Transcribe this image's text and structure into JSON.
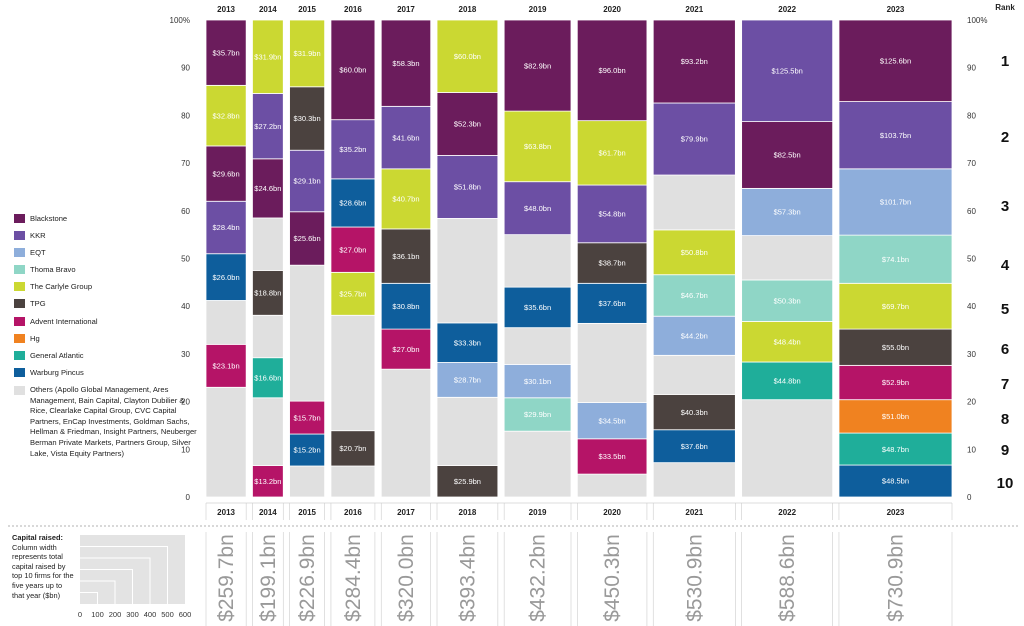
{
  "chart_data": {
    "type": "stacked-mekko",
    "rank_label": "Rank",
    "ranks": [
      "1",
      "2",
      "3",
      "4",
      "5",
      "6",
      "7",
      "8",
      "9",
      "10"
    ],
    "ylim": [
      0,
      100
    ],
    "yticks": [
      "0",
      "10",
      "20",
      "30",
      "40",
      "50",
      "60",
      "70",
      "80",
      "90",
      "100%"
    ],
    "colors": {
      "Blackstone": "#6b1c5c",
      "KKR": "#6c4fa4",
      "EQT": "#8eaedb",
      "Thoma Bravo": "#8fd6c6",
      "The Carlyle Group": "#cbd832",
      "TPG": "#4b423f",
      "Advent International": "#b51467",
      "Hg": "#f08220",
      "General Atlantic": "#1fae9a",
      "Warburg Pincus": "#0e5e9c",
      "Others": "#e0e0e0"
    },
    "legend": [
      {
        "name": "Blackstone",
        "label": "Blackstone"
      },
      {
        "name": "KKR",
        "label": "KKR"
      },
      {
        "name": "EQT",
        "label": "EQT"
      },
      {
        "name": "Thoma Bravo",
        "label": "Thoma Bravo"
      },
      {
        "name": "The Carlyle Group",
        "label": "The Carlyle Group"
      },
      {
        "name": "TPG",
        "label": "TPG"
      },
      {
        "name": "Advent International",
        "label": "Advent International"
      },
      {
        "name": "Hg",
        "label": "Hg"
      },
      {
        "name": "General Atlantic",
        "label": "General Atlantic"
      },
      {
        "name": "Warburg Pincus",
        "label": "Warburg Pincus"
      }
    ],
    "others_label": "Others (Apollo Global Management, Ares Management, Bain Capital, Clayton Dubilier & Rice, Clearlake Capital Group, CVC Capital Partners, EnCap Investments, Goldman Sachs, Hellman & Friedman, Insight Partners, Neuberger Berman Private Markets, Partners Group, Silver Lake, Vista Equity Partners)",
    "caption_title": "Capital raised:",
    "caption_text": "Column width represents total capital raised by top 10 firms for the five years up to that year ($bn)",
    "scale_ticks": [
      "0",
      "100",
      "200",
      "300",
      "400",
      "500",
      "600"
    ],
    "years": [
      {
        "year": "2013",
        "total": "$259.7bn",
        "total_bn": 259.7,
        "segments": [
          {
            "firm": "Others",
            "from": 0,
            "to": 23,
            "label": ""
          },
          {
            "firm": "Advent International",
            "from": 23,
            "to": 32,
            "label": "$23.1bn"
          },
          {
            "firm": "Others",
            "from": 32,
            "to": 41.2,
            "label": ""
          },
          {
            "firm": "Warburg Pincus",
            "from": 41.2,
            "to": 51,
            "label": "$26.0bn"
          },
          {
            "firm": "KKR",
            "from": 51,
            "to": 62,
            "label": "$28.4bn"
          },
          {
            "firm": "Blackstone",
            "from": 62,
            "to": 73.6,
            "label": "$29.6bn"
          },
          {
            "firm": "The Carlyle Group",
            "from": 73.6,
            "to": 86.3,
            "label": "$32.8bn"
          },
          {
            "firm": "Blackstone",
            "from": 86.3,
            "to": 100,
            "label": "$35.7bn"
          }
        ]
      },
      {
        "year": "2014",
        "total": "$199.1bn",
        "total_bn": 199.1,
        "segments": [
          {
            "firm": "Advent International",
            "from": 0,
            "to": 6.6,
            "label": "$13.2bn"
          },
          {
            "firm": "Others",
            "from": 6.6,
            "to": 20.8,
            "label": ""
          },
          {
            "firm": "General Atlantic",
            "from": 20.8,
            "to": 29.2,
            "label": "$16.6bn"
          },
          {
            "firm": "Others",
            "from": 29.2,
            "to": 38.1,
            "label": ""
          },
          {
            "firm": "TPG",
            "from": 38.1,
            "to": 47.5,
            "label": "$18.8bn"
          },
          {
            "firm": "Others",
            "from": 47.5,
            "to": 58.5,
            "label": ""
          },
          {
            "firm": "Blackstone",
            "from": 58.5,
            "to": 70.9,
            "label": "$24.6bn"
          },
          {
            "firm": "KKR",
            "from": 70.9,
            "to": 84.6,
            "label": "$27.2bn"
          },
          {
            "firm": "The Carlyle Group",
            "from": 84.6,
            "to": 100,
            "label": "$31.9bn"
          }
        ]
      },
      {
        "year": "2015",
        "total": "$226.9bn",
        "total_bn": 226.9,
        "segments": [
          {
            "firm": "Others",
            "from": 0,
            "to": 6.5,
            "label": ""
          },
          {
            "firm": "Warburg Pincus",
            "from": 6.5,
            "to": 13.2,
            "label": "$15.2bn"
          },
          {
            "firm": "Advent International",
            "from": 13.2,
            "to": 20.1,
            "label": "$15.7bn"
          },
          {
            "firm": "Others",
            "from": 20.1,
            "to": 48.6,
            "label": ""
          },
          {
            "firm": "Blackstone",
            "from": 48.6,
            "to": 59.8,
            "label": "$25.6bn"
          },
          {
            "firm": "KKR",
            "from": 59.8,
            "to": 72.7,
            "label": "$29.1bn"
          },
          {
            "firm": "TPG",
            "from": 72.7,
            "to": 86,
            "label": "$30.3bn"
          },
          {
            "firm": "The Carlyle Group",
            "from": 86,
            "to": 100,
            "label": "$31.9bn"
          }
        ]
      },
      {
        "year": "2016",
        "total": "$284.4bn",
        "total_bn": 284.4,
        "segments": [
          {
            "firm": "Others",
            "from": 0,
            "to": 6.5,
            "label": ""
          },
          {
            "firm": "TPG",
            "from": 6.5,
            "to": 13.9,
            "label": "$20.7bn"
          },
          {
            "firm": "Others",
            "from": 13.9,
            "to": 38.1,
            "label": ""
          },
          {
            "firm": "The Carlyle Group",
            "from": 38.1,
            "to": 47.1,
            "label": "$25.7bn"
          },
          {
            "firm": "Advent International",
            "from": 47.1,
            "to": 56.6,
            "label": "$27.0bn"
          },
          {
            "firm": "Warburg Pincus",
            "from": 56.6,
            "to": 66.7,
            "label": "$28.6bn"
          },
          {
            "firm": "KKR",
            "from": 66.7,
            "to": 79.1,
            "label": "$35.2bn"
          },
          {
            "firm": "Blackstone",
            "from": 79.1,
            "to": 100,
            "label": "$60.0bn"
          }
        ]
      },
      {
        "year": "2017",
        "total": "$320.0bn",
        "total_bn": 320.0,
        "segments": [
          {
            "firm": "Others",
            "from": 0,
            "to": 26.8,
            "label": ""
          },
          {
            "firm": "Advent International",
            "from": 26.8,
            "to": 35.2,
            "label": "$27.0bn"
          },
          {
            "firm": "Warburg Pincus",
            "from": 35.2,
            "to": 44.8,
            "label": "$30.8bn"
          },
          {
            "firm": "TPG",
            "from": 44.8,
            "to": 56.2,
            "label": "$36.1bn"
          },
          {
            "firm": "The Carlyle Group",
            "from": 56.2,
            "to": 68.8,
            "label": "$40.7bn"
          },
          {
            "firm": "KKR",
            "from": 68.8,
            "to": 81.9,
            "label": "$41.6bn"
          },
          {
            "firm": "Blackstone",
            "from": 81.9,
            "to": 100,
            "label": "$58.3bn"
          }
        ]
      },
      {
        "year": "2018",
        "total": "$393.4bn",
        "total_bn": 393.4,
        "segments": [
          {
            "firm": "TPG",
            "from": 0,
            "to": 6.6,
            "label": "$25.9bn"
          },
          {
            "firm": "Others",
            "from": 6.6,
            "to": 20.9,
            "label": ""
          },
          {
            "firm": "EQT",
            "from": 20.9,
            "to": 28.2,
            "label": "$28.7bn"
          },
          {
            "firm": "Warburg Pincus",
            "from": 28.2,
            "to": 36.5,
            "label": "$33.3bn"
          },
          {
            "firm": "Others",
            "from": 36.5,
            "to": 58.4,
            "label": ""
          },
          {
            "firm": "KKR",
            "from": 58.4,
            "to": 71.6,
            "label": "$51.8bn"
          },
          {
            "firm": "Blackstone",
            "from": 71.6,
            "to": 84.8,
            "label": "$52.3bn"
          },
          {
            "firm": "The Carlyle Group",
            "from": 84.8,
            "to": 100,
            "label": "$60.0bn"
          }
        ]
      },
      {
        "year": "2019",
        "total": "$432.2bn",
        "total_bn": 432.2,
        "segments": [
          {
            "firm": "Others",
            "from": 0,
            "to": 13.8,
            "label": ""
          },
          {
            "firm": "Thoma Bravo",
            "from": 13.8,
            "to": 20.8,
            "label": "$29.9bn"
          },
          {
            "firm": "EQT",
            "from": 20.8,
            "to": 27.8,
            "label": "$30.1bn"
          },
          {
            "firm": "Others",
            "from": 27.8,
            "to": 35.5,
            "label": ""
          },
          {
            "firm": "Warburg Pincus",
            "from": 35.5,
            "to": 44,
            "label": "$35.6bn"
          },
          {
            "firm": "Others",
            "from": 44,
            "to": 55,
            "label": ""
          },
          {
            "firm": "KKR",
            "from": 55,
            "to": 66.1,
            "label": "$48.0bn"
          },
          {
            "firm": "The Carlyle Group",
            "from": 66.1,
            "to": 80.9,
            "label": "$63.8bn"
          },
          {
            "firm": "Blackstone",
            "from": 80.9,
            "to": 100,
            "label": "$82.9bn"
          }
        ]
      },
      {
        "year": "2020",
        "total": "$450.3bn",
        "total_bn": 450.3,
        "segments": [
          {
            "firm": "Others",
            "from": 0,
            "to": 4.8,
            "label": ""
          },
          {
            "firm": "Advent International",
            "from": 4.8,
            "to": 12.2,
            "label": "$33.5bn"
          },
          {
            "firm": "EQT",
            "from": 12.2,
            "to": 19.8,
            "label": "$34.5bn"
          },
          {
            "firm": "Others",
            "from": 19.8,
            "to": 36.4,
            "label": ""
          },
          {
            "firm": "Warburg Pincus",
            "from": 36.4,
            "to": 44.8,
            "label": "$37.6bn"
          },
          {
            "firm": "TPG",
            "from": 44.8,
            "to": 53.3,
            "label": "$38.7bn"
          },
          {
            "firm": "KKR",
            "from": 53.3,
            "to": 65.4,
            "label": "$54.8bn"
          },
          {
            "firm": "The Carlyle Group",
            "from": 65.4,
            "to": 78.9,
            "label": "$61.7bn"
          },
          {
            "firm": "Blackstone",
            "from": 78.9,
            "to": 100,
            "label": "$96.0bn"
          }
        ]
      },
      {
        "year": "2021",
        "total": "$530.9bn",
        "total_bn": 530.9,
        "segments": [
          {
            "firm": "Others",
            "from": 0,
            "to": 7.2,
            "label": ""
          },
          {
            "firm": "Warburg Pincus",
            "from": 7.2,
            "to": 14.1,
            "label": "$37.6bn"
          },
          {
            "firm": "TPG",
            "from": 14.1,
            "to": 21.5,
            "label": "$40.3bn"
          },
          {
            "firm": "Others",
            "from": 21.5,
            "to": 29.7,
            "label": ""
          },
          {
            "firm": "EQT",
            "from": 29.7,
            "to": 37.9,
            "label": "$44.2bn"
          },
          {
            "firm": "Thoma Bravo",
            "from": 37.9,
            "to": 46.6,
            "label": "$46.7bn"
          },
          {
            "firm": "The Carlyle Group",
            "from": 46.6,
            "to": 56,
            "label": "$50.8bn"
          },
          {
            "firm": "Others",
            "from": 56,
            "to": 67.5,
            "label": ""
          },
          {
            "firm": "KKR",
            "from": 67.5,
            "to": 82.6,
            "label": "$79.9bn"
          },
          {
            "firm": "Blackstone",
            "from": 82.6,
            "to": 100,
            "label": "$93.2bn"
          }
        ]
      },
      {
        "year": "2022",
        "total": "$588.6bn",
        "total_bn": 588.6,
        "segments": [
          {
            "firm": "Others",
            "from": 0,
            "to": 20.4,
            "label": ""
          },
          {
            "firm": "General Atlantic",
            "from": 20.4,
            "to": 28.3,
            "label": "$44.8bn"
          },
          {
            "firm": "The Carlyle Group",
            "from": 28.3,
            "to": 36.8,
            "label": "$48.4bn"
          },
          {
            "firm": "Thoma Bravo",
            "from": 36.8,
            "to": 45.5,
            "label": "$50.3bn"
          },
          {
            "firm": "Others",
            "from": 45.5,
            "to": 54.8,
            "label": ""
          },
          {
            "firm": "EQT",
            "from": 54.8,
            "to": 64.7,
            "label": "$57.3bn"
          },
          {
            "firm": "Blackstone",
            "from": 64.7,
            "to": 78.7,
            "label": "$82.5bn"
          },
          {
            "firm": "KKR",
            "from": 78.7,
            "to": 100,
            "label": "$125.5bn"
          }
        ]
      },
      {
        "year": "2023",
        "total": "$730.9bn",
        "total_bn": 730.9,
        "segments": [
          {
            "firm": "Warburg Pincus",
            "from": 0,
            "to": 6.7,
            "label": "$48.5bn"
          },
          {
            "firm": "General Atlantic",
            "from": 6.7,
            "to": 13.4,
            "label": "$48.7bn"
          },
          {
            "firm": "Hg",
            "from": 13.4,
            "to": 20.4,
            "label": "$51.0bn"
          },
          {
            "firm": "Advent International",
            "from": 20.4,
            "to": 27.6,
            "label": "$52.9bn"
          },
          {
            "firm": "TPG",
            "from": 27.6,
            "to": 35.2,
            "label": "$55.0bn"
          },
          {
            "firm": "The Carlyle Group",
            "from": 35.2,
            "to": 44.8,
            "label": "$69.7bn"
          },
          {
            "firm": "Thoma Bravo",
            "from": 44.8,
            "to": 54.9,
            "label": "$74.1bn"
          },
          {
            "firm": "EQT",
            "from": 54.9,
            "to": 68.8,
            "label": "$101.7bn"
          },
          {
            "firm": "KKR",
            "from": 68.8,
            "to": 82.9,
            "label": "$103.7bn"
          },
          {
            "firm": "Blackstone",
            "from": 82.9,
            "to": 100,
            "label": "$125.6bn"
          }
        ]
      }
    ]
  }
}
